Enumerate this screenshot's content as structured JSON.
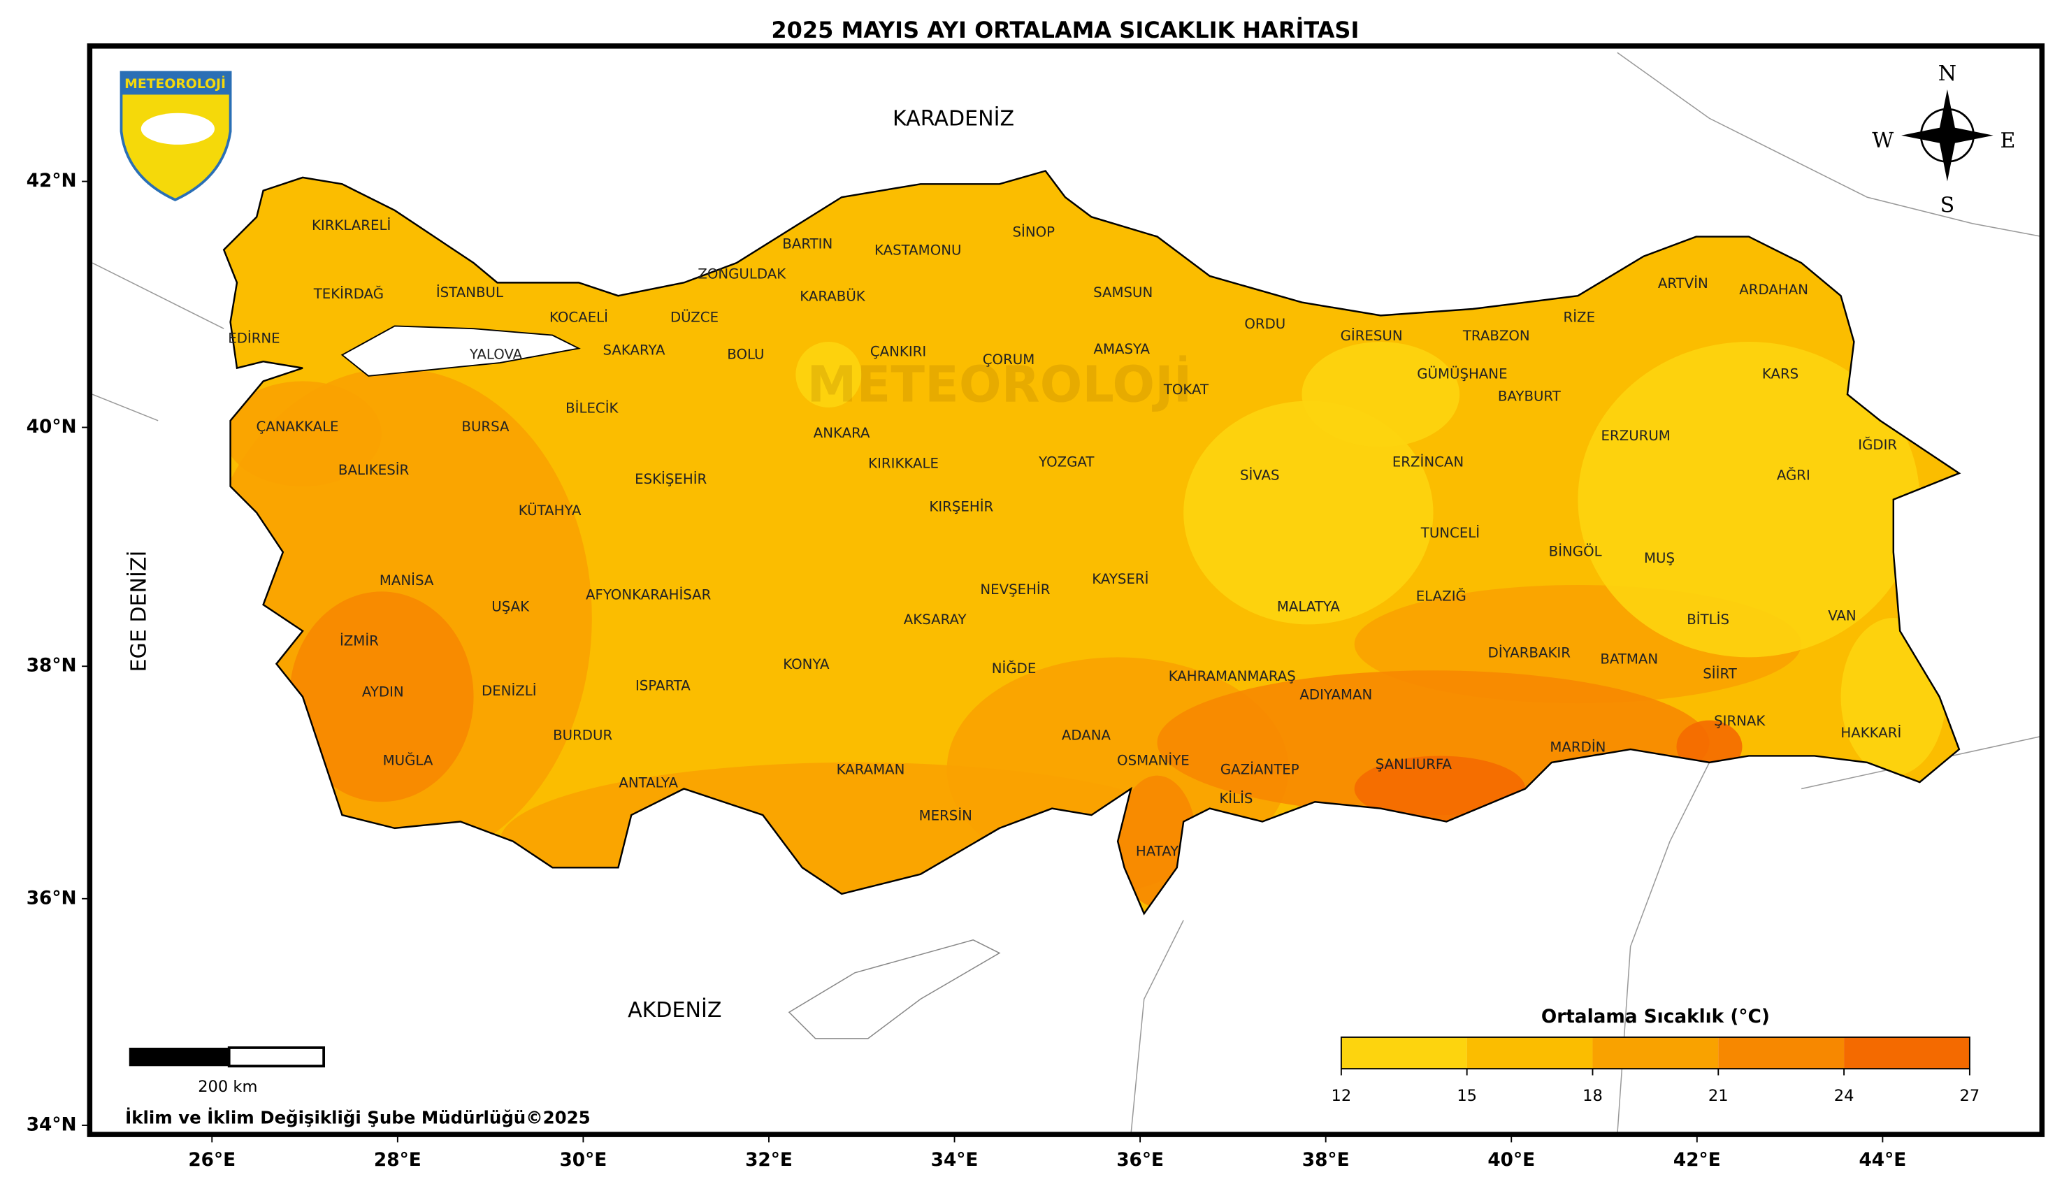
{
  "header": {
    "title": "2025 MAYIS AYI ORTALAMA SICAKLIK HARİTASI"
  },
  "map": {
    "lon_ticks": [
      {
        "value": 26,
        "label": "26°E"
      },
      {
        "value": 28,
        "label": "28°E"
      },
      {
        "value": 30,
        "label": "30°E"
      },
      {
        "value": 32,
        "label": "32°E"
      },
      {
        "value": 34,
        "label": "34°E"
      },
      {
        "value": 36,
        "label": "36°E"
      },
      {
        "value": 38,
        "label": "38°E"
      },
      {
        "value": 40,
        "label": "40°E"
      },
      {
        "value": 42,
        "label": "42°E"
      },
      {
        "value": 44,
        "label": "44°E"
      }
    ],
    "lat_ticks": [
      {
        "value": 34,
        "label": "34°N"
      },
      {
        "value": 36,
        "label": "36°N"
      },
      {
        "value": 38,
        "label": "38°N"
      },
      {
        "value": 40,
        "label": "40°N"
      },
      {
        "value": 42,
        "label": "42°N"
      }
    ],
    "seas": [
      "KARADENİZ",
      "AKDENİZ",
      "EGE DENİZİ"
    ],
    "provinces": [
      "KIRKLARELİ",
      "EDİRNE",
      "TEKİRDAĞ",
      "İSTANBUL",
      "KOCAELİ",
      "YALOVA",
      "SAKARYA",
      "DÜZCE",
      "ZONGULDAK",
      "BARTIN",
      "KARABÜK",
      "KASTAMONU",
      "SİNOP",
      "SAMSUN",
      "ORDU",
      "GİRESUN",
      "TRABZON",
      "RİZE",
      "ARTVİN",
      "ARDAHAN",
      "KARS",
      "IĞDIR",
      "AĞRI",
      "ERZURUM",
      "BAYBURT",
      "GÜMÜŞHANE",
      "ERZİNCAN",
      "TUNCELİ",
      "BİNGÖL",
      "MUŞ",
      "BİTLİS",
      "VAN",
      "HAKKARİ",
      "ŞIRNAK",
      "SİİRT",
      "BATMAN",
      "MARDİN",
      "DİYARBAKIR",
      "ELAZIĞ",
      "MALATYA",
      "ADIYAMAN",
      "ŞANLIURFA",
      "GAZİANTEP",
      "KİLİS",
      "OSMANİYE",
      "HATAY",
      "ADANA",
      "KAHRAMANMARAŞ",
      "KAYSERİ",
      "SİVAS",
      "TOKAT",
      "AMASYA",
      "ÇORUM",
      "YOZGAT",
      "ÇANKIRI",
      "KIRIKKALE",
      "KIRŞEHİR",
      "NEVŞEHİR",
      "AKSARAY",
      "NİĞDE",
      "KONYA",
      "KARAMAN",
      "MERSİN",
      "ANTALYA",
      "ISPARTA",
      "BURDUR",
      "DENİZLİ",
      "MUĞLA",
      "AYDIN",
      "İZMİR",
      "MANİSA",
      "UŞAK",
      "AFYONKARAHİSAR",
      "KÜTAHYA",
      "ESKİŞEHİR",
      "BİLECİK",
      "BURSA",
      "BALIKESİR",
      "ÇANAKKALE",
      "BOLU",
      "ANKARA"
    ],
    "watermark": "METEOROLOJİ",
    "logo": "METEOROLOJİ",
    "compass": {
      "n": "N",
      "e": "E",
      "s": "S",
      "w": "W"
    },
    "scale_bar": "200 km",
    "credit": "İklim ve İklim Değişikliği Şube Müdürlüğü©2025"
  },
  "legend": {
    "title": "Ortalama Sıcaklık (°C)",
    "ticks": [
      12,
      15,
      18,
      21,
      24,
      27
    ],
    "colors": [
      "#fdd40e",
      "#fbbd00",
      "#f9a200",
      "#f78800",
      "#f46a00"
    ]
  }
}
